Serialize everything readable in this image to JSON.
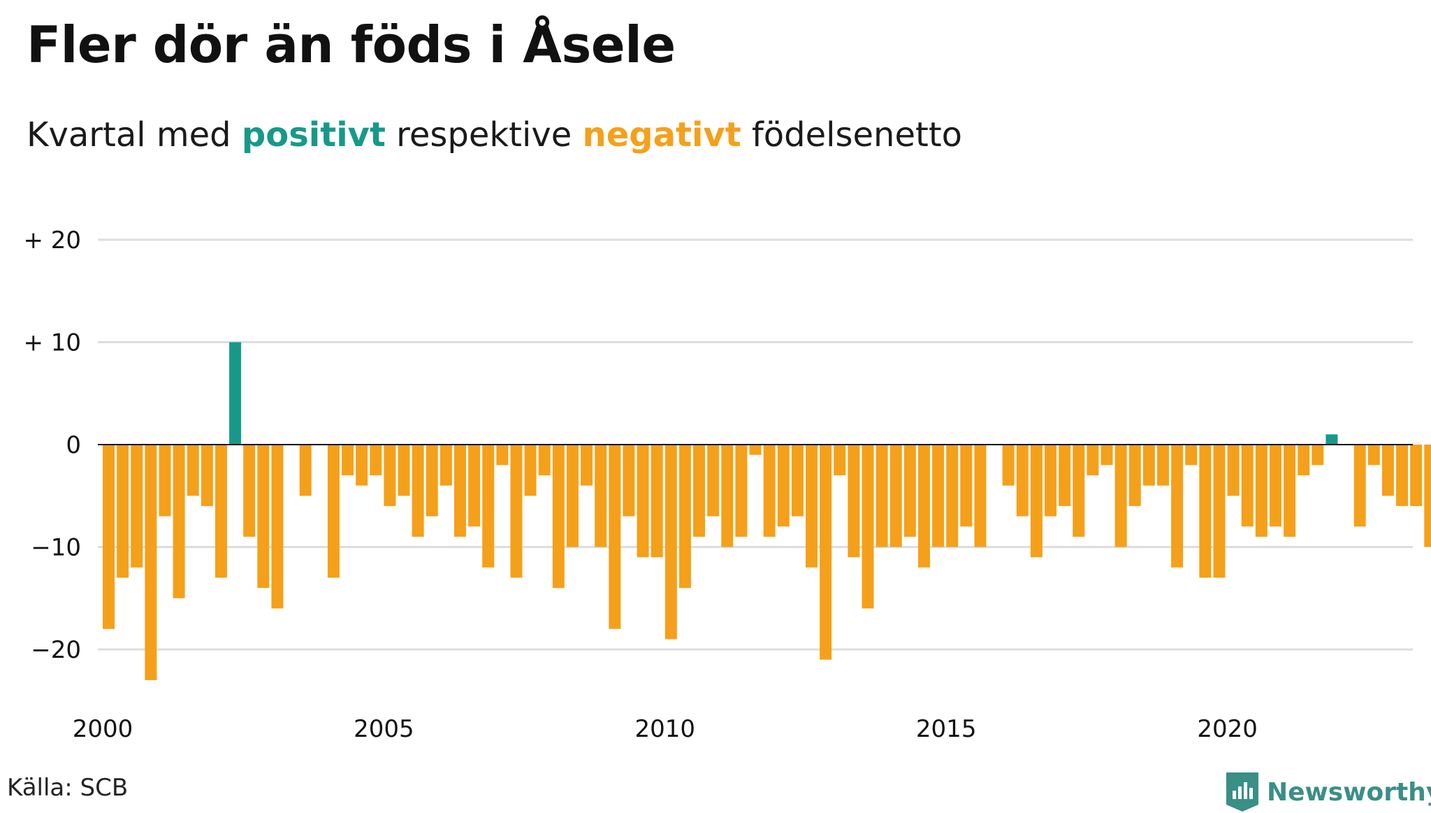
{
  "colors": {
    "positive": "#17998a",
    "negative": "#f5a01a",
    "grid": "#dddddd",
    "zero": "#111111",
    "brand": "#3a8f86"
  },
  "subtitle": {
    "prefix": "Kvartal med",
    "positive_word": "positivt",
    "middle": "respektive",
    "negative_word": "negativt",
    "suffix": "födelsenetto"
  },
  "source": "Källa: SCB",
  "brand": {
    "name": "Newsworthy",
    "icon": "newsworthy-logo-icon"
  },
  "chart_data": {
    "type": "bar",
    "title": "Fler dör än föds i Åsele",
    "xlabel": "",
    "ylabel": "",
    "x_start": "2000 Q1",
    "x_ticks": [
      2000,
      2005,
      2010,
      2015,
      2020
    ],
    "y_ticks": [
      20,
      10,
      0,
      -10,
      -20
    ],
    "y_tick_labels": [
      "+ 20",
      "+ 10",
      "0",
      "−10",
      "−20"
    ],
    "ylim": [
      -25,
      22
    ],
    "grid": true,
    "legend": "none",
    "values": [
      -18,
      -13,
      -12,
      -23,
      -7,
      -15,
      -5,
      -6,
      -13,
      10,
      -9,
      -14,
      -16,
      0,
      -5,
      0,
      -13,
      -3,
      -4,
      -3,
      -6,
      -5,
      -9,
      -7,
      -4,
      -9,
      -8,
      -12,
      -2,
      -13,
      -5,
      -3,
      -14,
      -10,
      -4,
      -10,
      -18,
      -7,
      -11,
      -11,
      -19,
      -14,
      -9,
      -7,
      -10,
      -9,
      -1,
      -9,
      -8,
      -7,
      -12,
      -21,
      -3,
      -11,
      -16,
      -10,
      -10,
      -9,
      -12,
      -10,
      -10,
      -8,
      -10,
      0,
      -4,
      -7,
      -11,
      -7,
      -6,
      -9,
      -3,
      -2,
      -10,
      -6,
      -4,
      -4,
      -12,
      -2,
      -13,
      -13,
      -5,
      -8,
      -9,
      -8,
      -9,
      -3,
      -2,
      1,
      0,
      -8,
      -2,
      -5,
      -6,
      -6,
      -10
    ]
  }
}
